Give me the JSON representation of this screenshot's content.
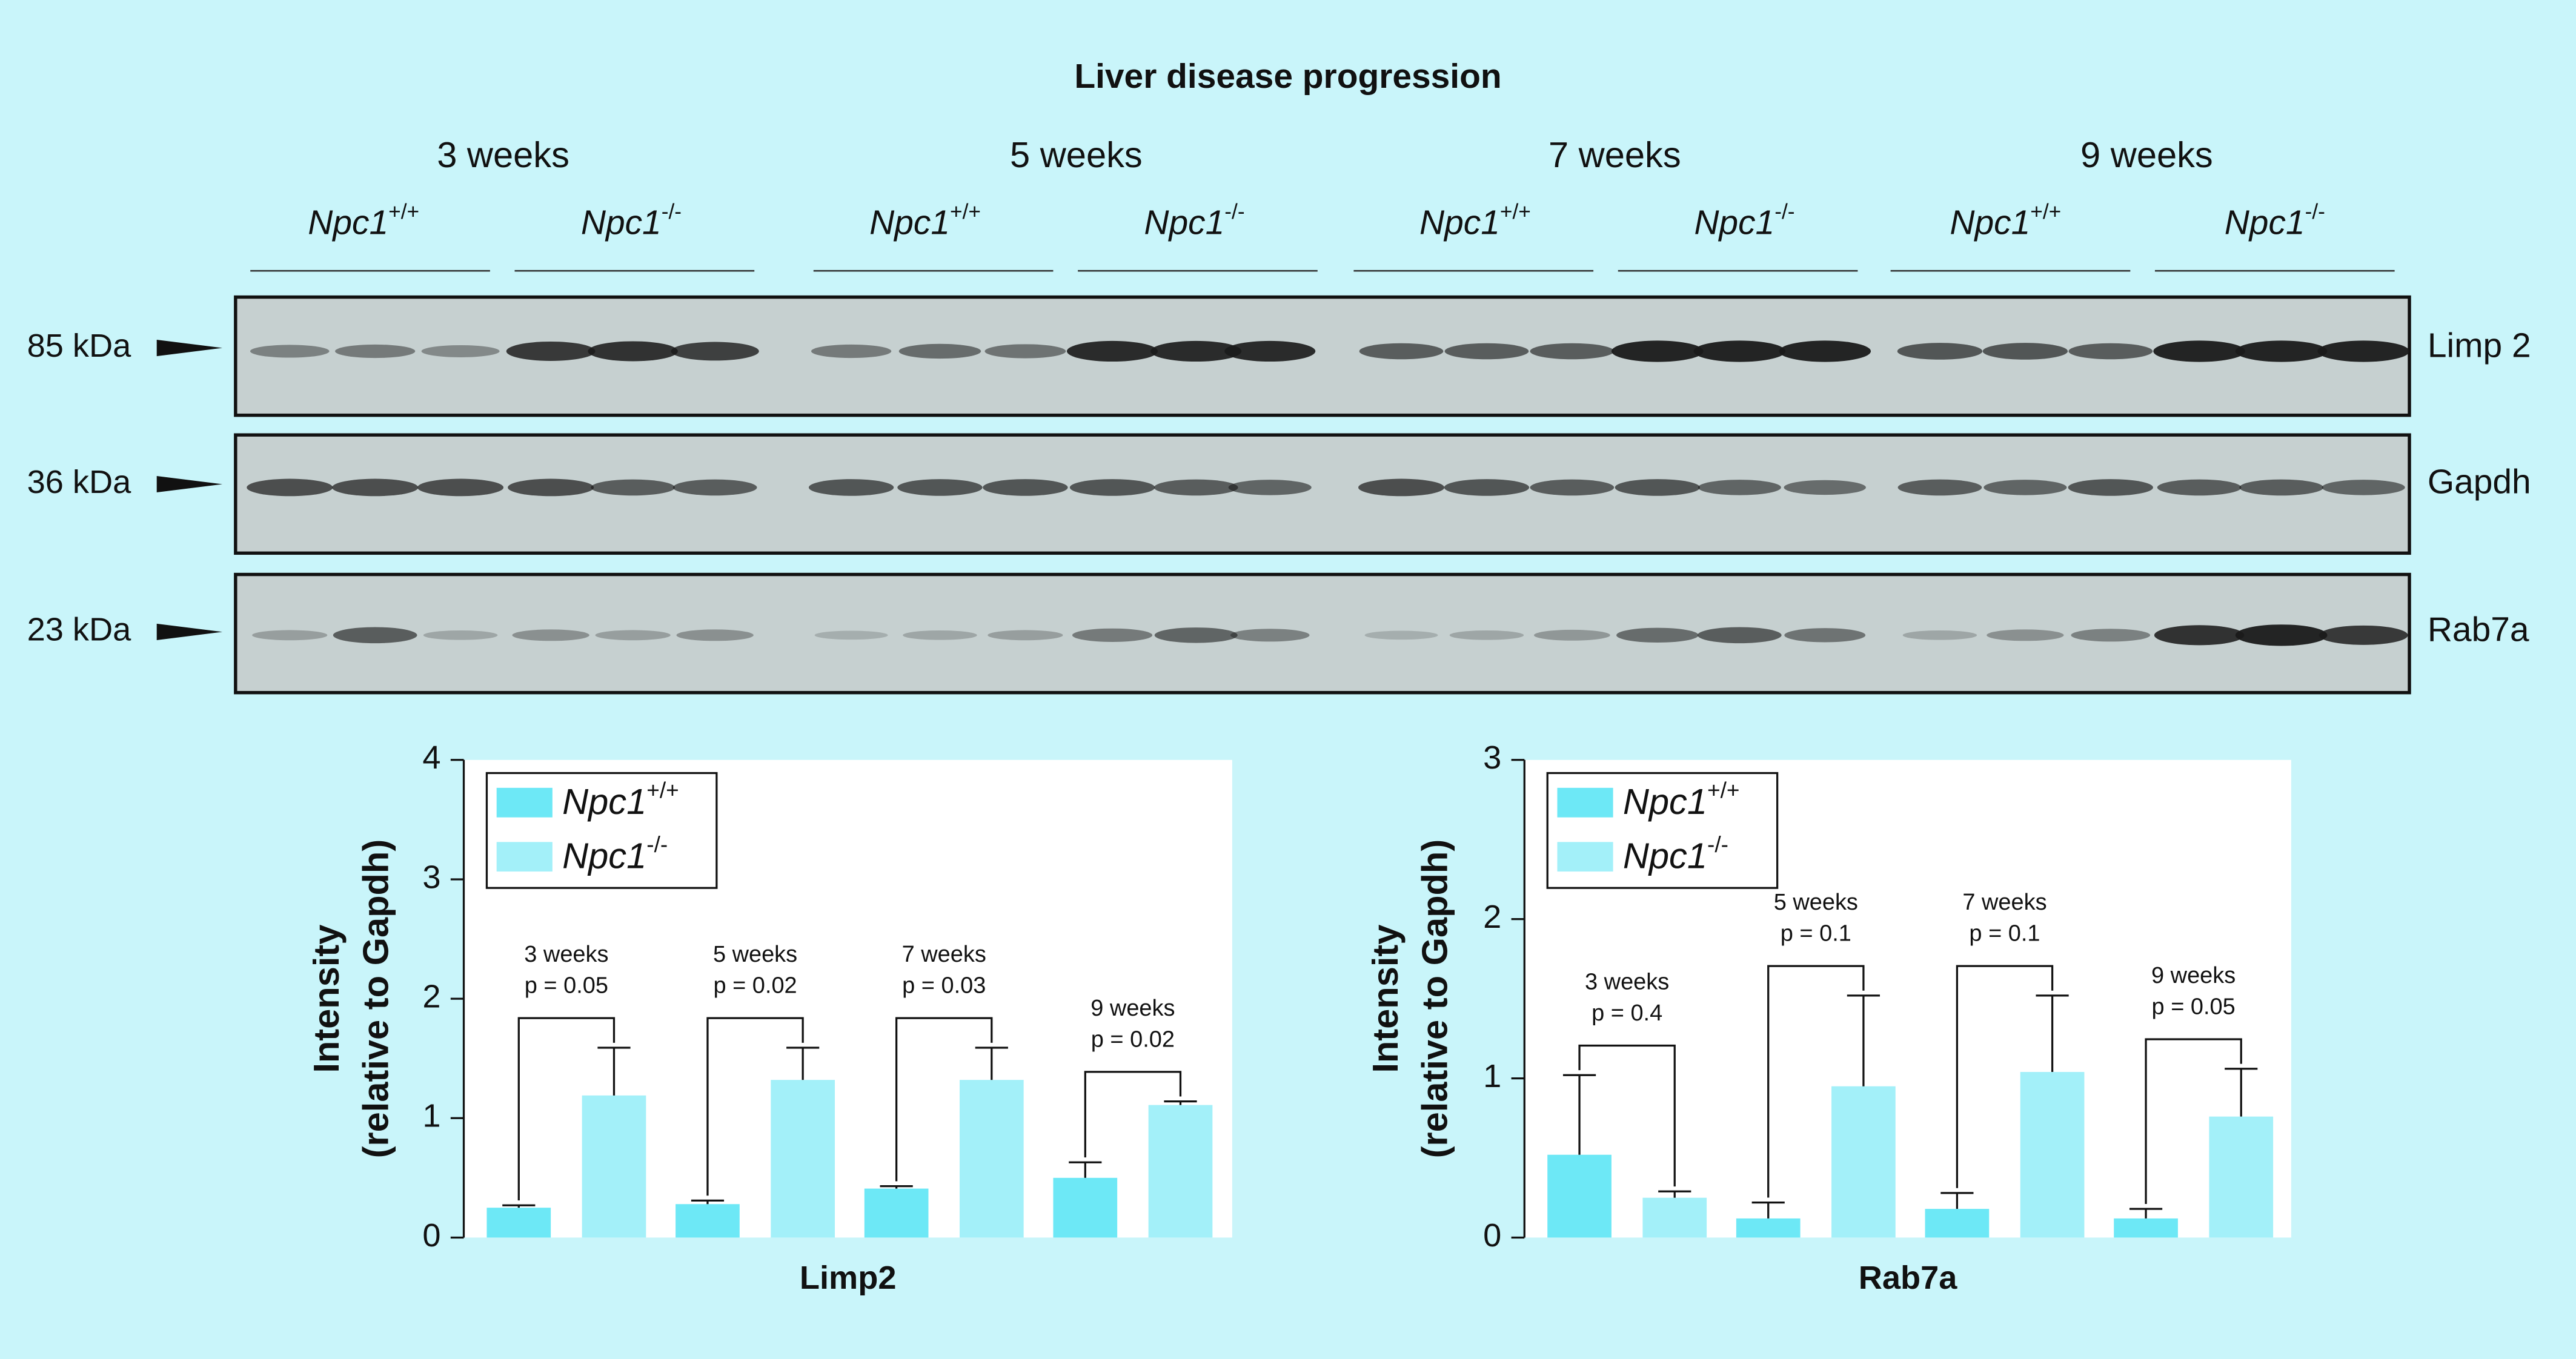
{
  "figure": {
    "title": "Liver disease progression",
    "timepoints": [
      "3 weeks",
      "5 weeks",
      "7 weeks",
      "9 weeks"
    ],
    "genotypes": [
      "Npc1+/+",
      "Npc1-/-"
    ],
    "blot_rows": [
      {
        "marker": "85 kDa",
        "protein": "Limp 2"
      },
      {
        "marker": "36 kDa",
        "protein": "Gapdh"
      },
      {
        "marker": "23 kDa",
        "protein": "Rab7a"
      }
    ]
  },
  "chart_data": [
    {
      "type": "bar",
      "xlabel": "Limp2",
      "ylabel": [
        "Intensity",
        "(relative to Gapdh)"
      ],
      "categories": [
        null,
        null,
        null,
        null
      ],
      "annotations": [
        {
          "lines": [
            "3 weeks",
            "p = 0.05"
          ]
        },
        {
          "lines": [
            "5 weeks",
            "p = 0.02"
          ]
        },
        {
          "lines": [
            "7 weeks",
            "p = 0.03"
          ]
        },
        {
          "lines": [
            "9 weeks",
            "p = 0.02"
          ]
        }
      ],
      "series": [
        {
          "name": "Npc1+/+",
          "color": "#6de8f6",
          "values": [
            0.25,
            0.28,
            0.41,
            0.5
          ],
          "errors": [
            0.02,
            0.03,
            0.02,
            0.13
          ]
        },
        {
          "name": "Npc1-/-",
          "color": "#a3f0f9",
          "values": [
            1.19,
            1.32,
            1.32,
            1.11
          ],
          "errors": [
            0.4,
            0.27,
            0.27,
            0.03
          ]
        }
      ],
      "ylim": [
        0,
        4
      ],
      "yticks": [
        0,
        1,
        2,
        3,
        4
      ],
      "legend": "upper left"
    },
    {
      "type": "bar",
      "xlabel": "Rab7a",
      "ylabel": [
        "Intensity",
        "(relative to Gapdh)"
      ],
      "categories": [
        null,
        null,
        null,
        null
      ],
      "annotations": [
        {
          "lines": [
            "3 weeks",
            "p = 0.4"
          ]
        },
        {
          "lines": [
            "5 weeks",
            "p = 0.1"
          ]
        },
        {
          "lines": [
            "7 weeks",
            "p = 0.1"
          ]
        },
        {
          "lines": [
            "9 weeks",
            "p = 0.05"
          ]
        }
      ],
      "series": [
        {
          "name": "Npc1+/+",
          "color": "#6de8f6",
          "values": [
            0.52,
            0.12,
            0.18,
            0.12
          ],
          "errors": [
            0.5,
            0.1,
            0.1,
            0.06
          ]
        },
        {
          "name": "Npc1-/-",
          "color": "#a3f0f9",
          "values": [
            0.25,
            0.95,
            1.04,
            0.76
          ],
          "errors": [
            0.04,
            0.57,
            0.48,
            0.3
          ]
        }
      ],
      "ylim": [
        0,
        3
      ],
      "yticks": [
        0,
        1,
        2,
        3
      ],
      "legend": "upper left"
    }
  ]
}
